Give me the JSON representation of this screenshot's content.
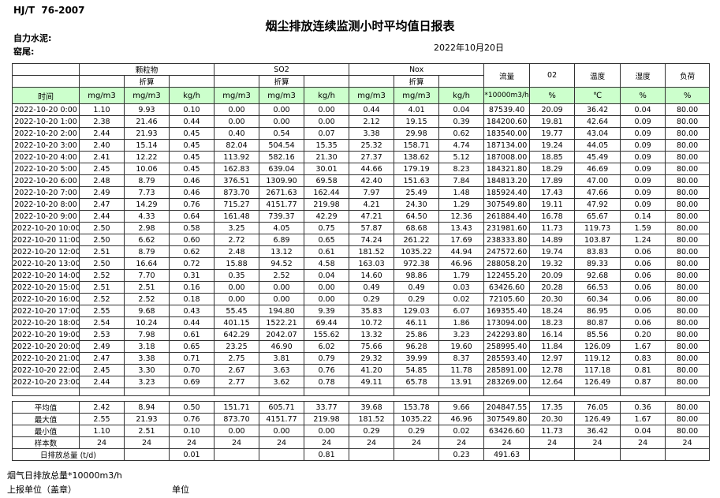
{
  "page": {
    "standard_code": "HJ/T  76-2007",
    "title": "烟尘排放连续监测小时平均值日报表",
    "company_label": "自力水泥:",
    "site_label": "窑尾:",
    "report_date": "2022年10月20日"
  },
  "table": {
    "header": {
      "time": "时间",
      "group_labels": [
        "颗粒物",
        "SO2",
        "Nox"
      ],
      "converted_label": "折算",
      "single_columns": [
        {
          "label": "流量",
          "unit": "*10000m3/h"
        },
        {
          "label": "02",
          "unit": "%"
        },
        {
          "label": "温度",
          "unit": "℃"
        },
        {
          "label": "湿度",
          "unit": "%"
        },
        {
          "label": "负荷",
          "unit": "%"
        }
      ],
      "units_row": [
        "mg/m3",
        "mg/m3",
        "kg/h",
        "mg/m3",
        "mg/m3",
        "kg/h",
        "mg/m3",
        "mg/m3",
        "kg/h",
        "*10000m3/h",
        "%",
        "℃",
        "%",
        "%"
      ]
    },
    "rows": [
      {
        "time": "2022-10-20 0:00",
        "values": [
          "1.10",
          "9.93",
          "0.10",
          "0.00",
          "0.00",
          "0.00",
          "0.44",
          "4.01",
          "0.04",
          "87539.40",
          "20.09",
          "36.42",
          "0.04",
          "80.00"
        ]
      },
      {
        "time": "2022-10-20 1:00",
        "values": [
          "2.38",
          "21.46",
          "0.44",
          "0.00",
          "0.00",
          "0.00",
          "2.12",
          "19.15",
          "0.39",
          "184200.60",
          "19.81",
          "42.64",
          "0.09",
          "80.00"
        ]
      },
      {
        "time": "2022-10-20 2:00",
        "values": [
          "2.44",
          "21.93",
          "0.45",
          "0.40",
          "0.54",
          "0.07",
          "3.38",
          "29.98",
          "0.62",
          "183540.00",
          "19.77",
          "43.04",
          "0.09",
          "80.00"
        ]
      },
      {
        "time": "2022-10-20 3:00",
        "values": [
          "2.40",
          "15.14",
          "0.45",
          "82.04",
          "504.54",
          "15.35",
          "25.32",
          "158.71",
          "4.74",
          "187134.00",
          "19.24",
          "44.05",
          "0.09",
          "80.00"
        ]
      },
      {
        "time": "2022-10-20 4:00",
        "values": [
          "2.41",
          "12.22",
          "0.45",
          "113.92",
          "582.16",
          "21.30",
          "27.37",
          "138.62",
          "5.12",
          "187008.00",
          "18.85",
          "45.49",
          "0.09",
          "80.00"
        ]
      },
      {
        "time": "2022-10-20 5:00",
        "values": [
          "2.45",
          "10.06",
          "0.45",
          "162.83",
          "639.04",
          "30.01",
          "44.66",
          "179.19",
          "8.23",
          "184321.80",
          "18.29",
          "46.69",
          "0.09",
          "80.00"
        ]
      },
      {
        "time": "2022-10-20 6:00",
        "values": [
          "2.48",
          "8.79",
          "0.46",
          "376.51",
          "1309.90",
          "69.58",
          "42.40",
          "151.63",
          "7.84",
          "184813.20",
          "17.89",
          "47.00",
          "0.09",
          "80.00"
        ]
      },
      {
        "time": "2022-10-20 7:00",
        "values": [
          "2.49",
          "7.73",
          "0.46",
          "873.70",
          "2671.63",
          "162.44",
          "7.97",
          "25.49",
          "1.48",
          "185924.40",
          "17.43",
          "47.66",
          "0.09",
          "80.00"
        ]
      },
      {
        "time": "2022-10-20 8:00",
        "values": [
          "2.47",
          "14.29",
          "0.76",
          "715.27",
          "4151.77",
          "219.98",
          "4.21",
          "24.30",
          "1.29",
          "307549.80",
          "19.11",
          "47.92",
          "0.09",
          "80.00"
        ]
      },
      {
        "time": "2022-10-20 9:00",
        "values": [
          "2.44",
          "4.33",
          "0.64",
          "161.48",
          "739.37",
          "42.29",
          "47.21",
          "64.50",
          "12.36",
          "261884.40",
          "16.78",
          "65.67",
          "0.14",
          "80.00"
        ]
      },
      {
        "time": "2022-10-20 10:00",
        "values": [
          "2.50",
          "2.98",
          "0.58",
          "3.25",
          "4.05",
          "0.75",
          "57.87",
          "68.68",
          "13.43",
          "231981.60",
          "11.73",
          "119.73",
          "1.59",
          "80.00"
        ]
      },
      {
        "time": "2022-10-20 11:00",
        "values": [
          "2.50",
          "6.62",
          "0.60",
          "2.72",
          "6.89",
          "0.65",
          "74.24",
          "261.22",
          "17.69",
          "238333.80",
          "14.89",
          "103.87",
          "1.24",
          "80.00"
        ]
      },
      {
        "time": "2022-10-20 12:00",
        "values": [
          "2.51",
          "8.79",
          "0.62",
          "2.48",
          "13.12",
          "0.61",
          "181.52",
          "1035.22",
          "44.94",
          "247572.60",
          "19.74",
          "83.83",
          "0.06",
          "80.00"
        ]
      },
      {
        "time": "2022-10-20 13:00",
        "values": [
          "2.50",
          "16.64",
          "0.72",
          "15.88",
          "94.52",
          "4.58",
          "163.03",
          "972.38",
          "46.96",
          "288058.20",
          "19.32",
          "89.33",
          "0.06",
          "80.00"
        ]
      },
      {
        "time": "2022-10-20 14:00",
        "values": [
          "2.52",
          "7.70",
          "0.31",
          "0.35",
          "2.52",
          "0.04",
          "14.60",
          "98.86",
          "1.79",
          "122455.20",
          "20.09",
          "92.68",
          "0.06",
          "80.00"
        ]
      },
      {
        "time": "2022-10-20 15:00",
        "values": [
          "2.51",
          "2.51",
          "0.16",
          "0.00",
          "0.00",
          "0.00",
          "0.49",
          "0.49",
          "0.03",
          "63426.60",
          "20.28",
          "66.53",
          "0.06",
          "80.00"
        ]
      },
      {
        "time": "2022-10-20 16:00",
        "values": [
          "2.52",
          "2.52",
          "0.18",
          "0.00",
          "0.00",
          "0.00",
          "0.29",
          "0.29",
          "0.02",
          "72105.60",
          "20.30",
          "60.34",
          "0.06",
          "80.00"
        ]
      },
      {
        "time": "2022-10-20 17:00",
        "values": [
          "2.55",
          "9.68",
          "0.43",
          "55.45",
          "194.80",
          "9.39",
          "35.83",
          "129.03",
          "6.07",
          "169355.40",
          "18.24",
          "86.95",
          "0.06",
          "80.00"
        ]
      },
      {
        "time": "2022-10-20 18:00",
        "values": [
          "2.54",
          "10.24",
          "0.44",
          "401.15",
          "1522.21",
          "69.44",
          "10.72",
          "46.11",
          "1.86",
          "173094.00",
          "18.23",
          "80.87",
          "0.06",
          "80.00"
        ]
      },
      {
        "time": "2022-10-20 19:00",
        "values": [
          "2.53",
          "7.98",
          "0.61",
          "642.29",
          "2042.07",
          "155.62",
          "13.32",
          "25.86",
          "3.23",
          "242293.80",
          "16.14",
          "85.56",
          "0.20",
          "80.00"
        ]
      },
      {
        "time": "2022-10-20 20:00",
        "values": [
          "2.49",
          "3.18",
          "0.65",
          "23.25",
          "46.90",
          "6.02",
          "75.66",
          "96.28",
          "19.60",
          "258995.40",
          "11.84",
          "126.09",
          "1.67",
          "80.00"
        ]
      },
      {
        "time": "2022-10-20 21:00",
        "values": [
          "2.47",
          "3.38",
          "0.71",
          "2.75",
          "3.81",
          "0.79",
          "29.32",
          "39.99",
          "8.37",
          "285593.40",
          "12.97",
          "119.12",
          "0.83",
          "80.00"
        ]
      },
      {
        "time": "2022-10-20 22:00",
        "values": [
          "2.45",
          "3.30",
          "0.70",
          "2.67",
          "3.63",
          "0.76",
          "41.20",
          "54.85",
          "11.78",
          "285891.00",
          "12.78",
          "117.18",
          "0.81",
          "80.00"
        ]
      },
      {
        "time": "2022-10-20 23:00",
        "values": [
          "2.44",
          "3.23",
          "0.69",
          "2.77",
          "3.62",
          "0.78",
          "49.11",
          "65.78",
          "13.91",
          "283269.00",
          "12.64",
          "126.49",
          "0.87",
          "80.00"
        ]
      }
    ],
    "summary_rows": [
      {
        "label": "平均值",
        "values": [
          "2.42",
          "8.94",
          "0.50",
          "151.71",
          "605.71",
          "33.77",
          "39.68",
          "153.78",
          "9.66",
          "204847.55",
          "17.35",
          "76.05",
          "0.36",
          "80.00"
        ]
      },
      {
        "label": "最大值",
        "values": [
          "2.55",
          "21.93",
          "0.76",
          "873.70",
          "4151.77",
          "219.98",
          "181.52",
          "1035.22",
          "46.96",
          "307549.80",
          "20.30",
          "126.49",
          "1.67",
          "80.00"
        ]
      },
      {
        "label": "最小值",
        "values": [
          "1.10",
          "2.51",
          "0.10",
          "0.00",
          "0.00",
          "0.00",
          "0.29",
          "0.29",
          "0.02",
          "63426.60",
          "11.73",
          "36.42",
          "0.04",
          "80.00"
        ]
      },
      {
        "label": "样本数",
        "values": [
          "24",
          "24",
          "24",
          "24",
          "24",
          "24",
          "24",
          "24",
          "24",
          "24",
          "24",
          "24",
          "24",
          "24"
        ]
      }
    ],
    "daily_total_row": {
      "label": "日排放总量 (t/d)",
      "values": [
        "",
        "0.01",
        "",
        "",
        "0.81",
        "",
        "",
        "0.23",
        "491.63",
        "",
        "",
        "",
        ""
      ]
    }
  },
  "footer": {
    "flue_total_label": "烟气日排放总量*10000m3/h",
    "report_unit_label": "上报单位（盖章）",
    "unit_label": "单位"
  },
  "colors": {
    "header_green": "#ccffcc",
    "border": "#333333",
    "text": "#000000",
    "background": "#ffffff"
  }
}
